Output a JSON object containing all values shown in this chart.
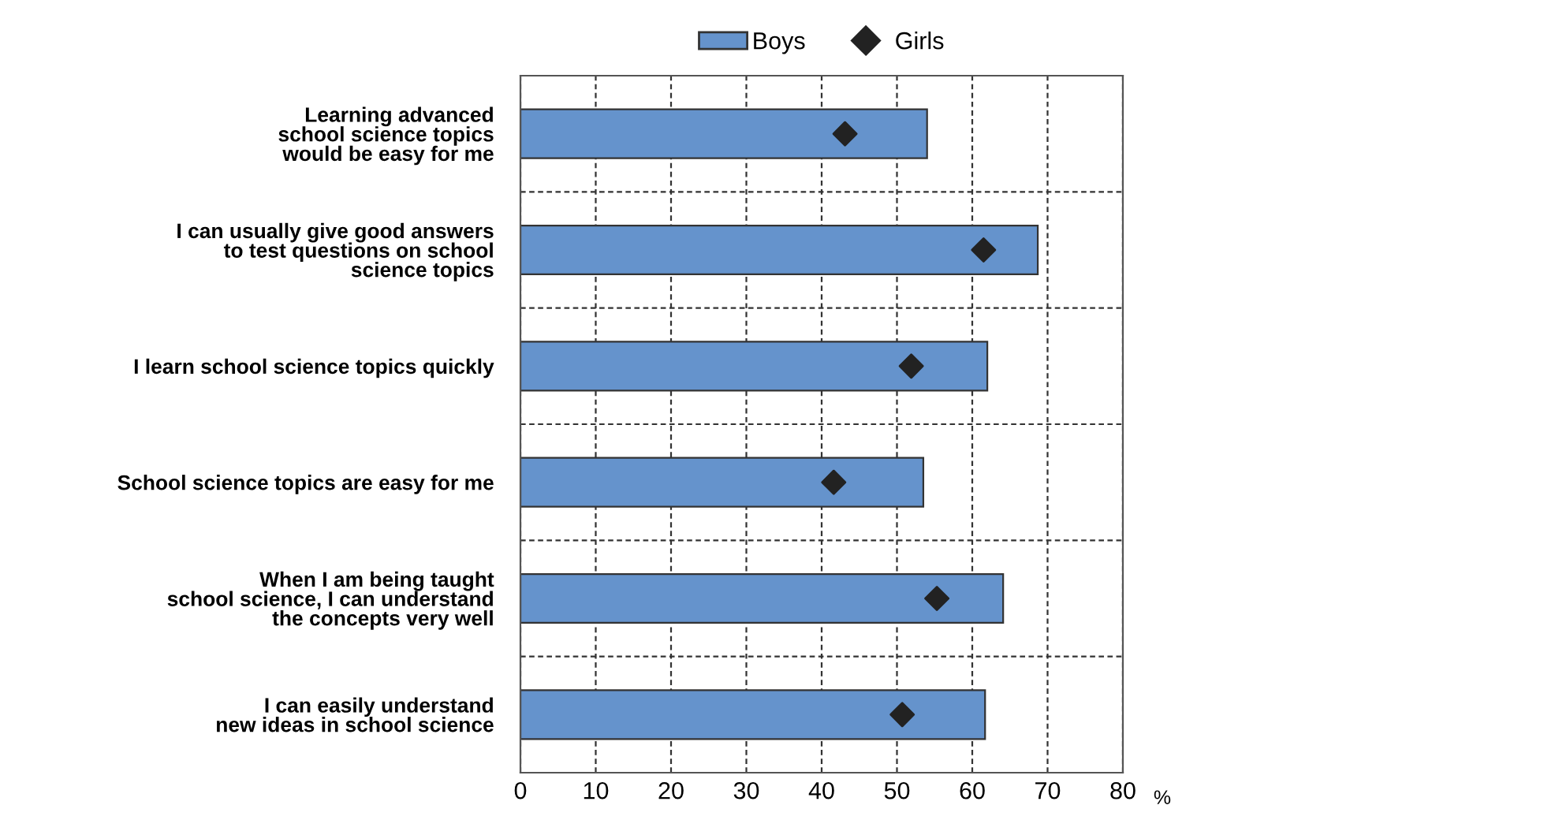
{
  "chart_data": {
    "type": "bar",
    "orientation": "horizontal",
    "categories": [
      "Learning advanced\nschool science topics\nwould be easy for me",
      "I can usually give good answers\nto test questions on school\nscience topics",
      "I learn school science topics quickly",
      "School science topics are easy for me",
      "When I am being taught\nschool science, I can understand\nthe concepts very well",
      "I can easily understand\nnew ideas in school science"
    ],
    "series": [
      {
        "name": "Boys",
        "color": "#6593cc",
        "values": [
          54.0,
          68.7,
          62.0,
          53.5,
          64.1,
          61.7
        ]
      },
      {
        "name": "Girls",
        "type": "scatter",
        "color": "#222222",
        "marker": "diamond",
        "values": [
          43.1,
          61.5,
          51.9,
          41.6,
          55.3,
          50.7
        ]
      }
    ],
    "xlabel": "%",
    "xlim": [
      0,
      80
    ],
    "xticks": [
      0,
      10,
      20,
      30,
      40,
      50,
      60,
      70,
      80
    ],
    "grid": true,
    "legend": "top"
  }
}
